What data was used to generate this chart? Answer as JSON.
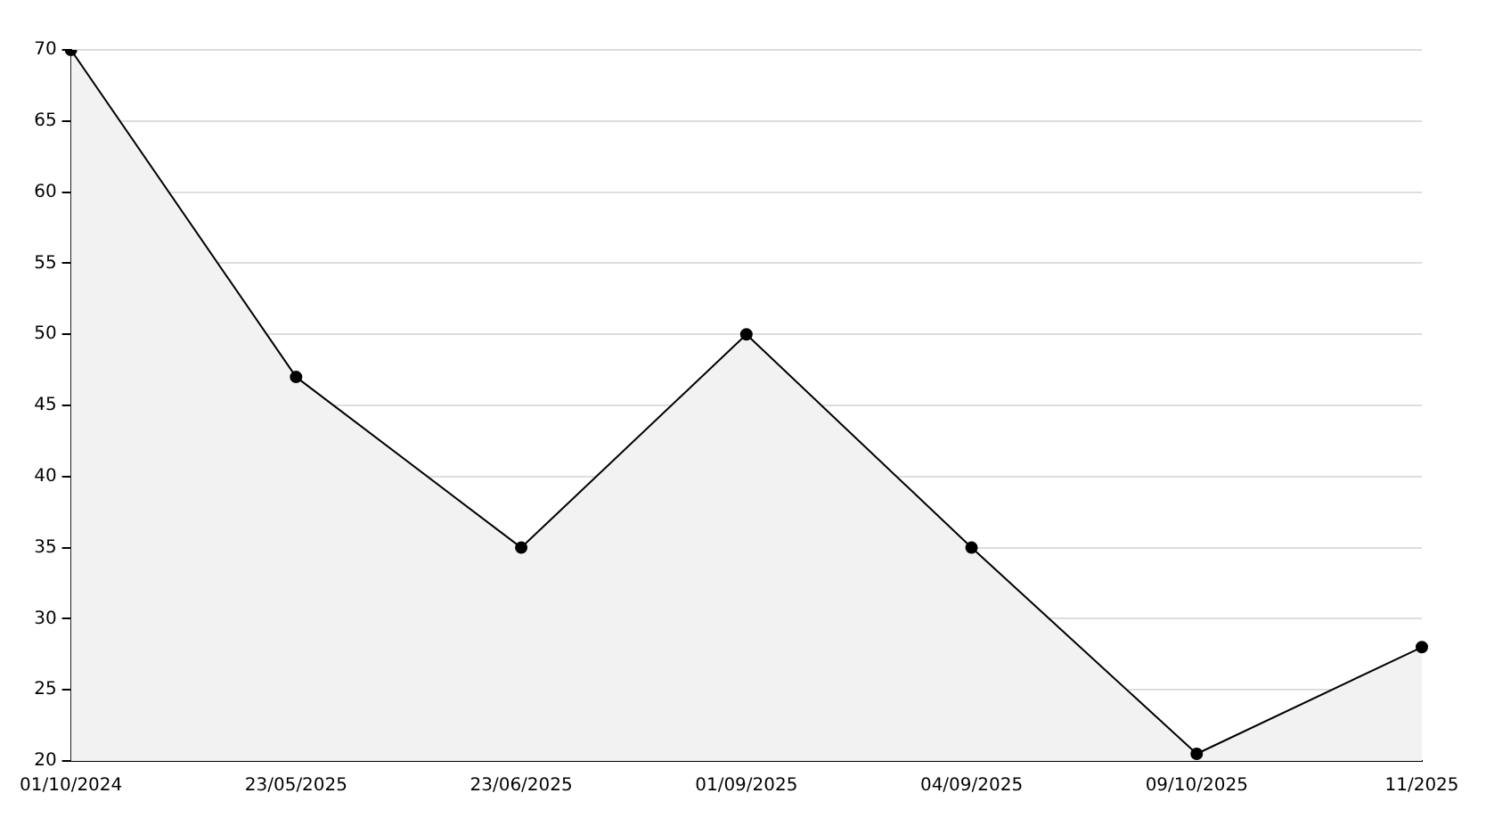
{
  "chart_data": {
    "type": "area",
    "categories": [
      "01/10/2024",
      "23/05/2025",
      "23/06/2025",
      "01/09/2025",
      "04/09/2025",
      "09/10/2025",
      "11/2025"
    ],
    "series": [
      {
        "color": "#000000",
        "values": [
          70,
          47,
          35,
          50,
          35,
          20.5,
          28
        ]
      }
    ],
    "ylim": [
      20,
      70
    ],
    "yticks": [
      20,
      25,
      30,
      35,
      40,
      45,
      50,
      55,
      60,
      65,
      70
    ],
    "grid": "y",
    "legend": false,
    "marker": "circle"
  }
}
